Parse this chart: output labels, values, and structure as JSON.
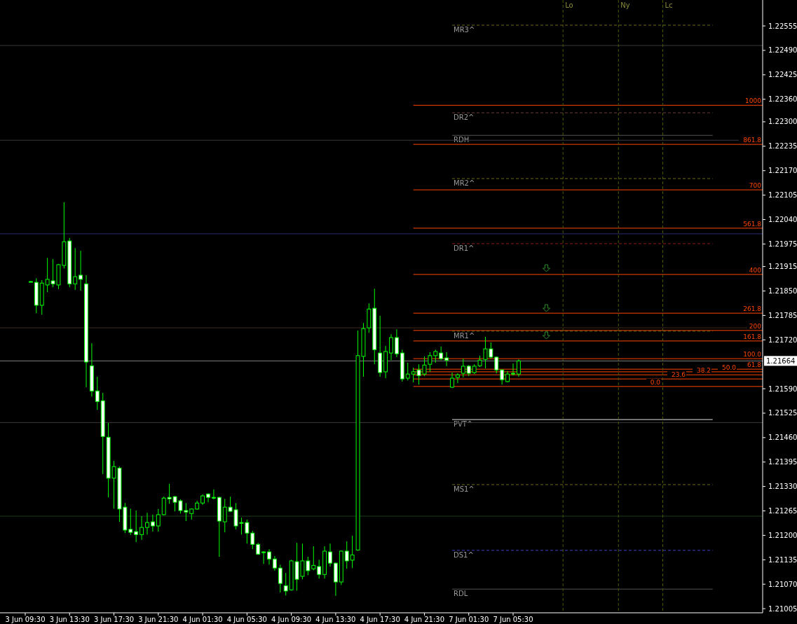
{
  "chart_data": {
    "type": "candlestick",
    "color": "#00ff00",
    "annotations": [
      {
        "text": "1000",
        "y": 1.22344
      },
      {
        "text": "861.8",
        "y": 1.2224
      },
      {
        "text": "700",
        "y": 1.22119
      },
      {
        "text": "561.8",
        "y": 1.22017
      },
      {
        "text": "400",
        "y": 1.21894
      },
      {
        "text": "261.8",
        "y": 1.21791
      },
      {
        "text": "200",
        "y": 1.21745
      },
      {
        "text": "161.8",
        "y": 1.21717
      },
      {
        "text": "100.0",
        "y": 1.2167
      },
      {
        "text": "61.8",
        "y": 1.21642
      },
      {
        "text": "50.0",
        "y": 1.21635
      },
      {
        "text": "38.2",
        "y": 1.21627
      },
      {
        "text": "23.6",
        "y": 1.21616
      },
      {
        "text": "0.0",
        "y": 1.21596
      },
      "Lo",
      "Ny",
      "Lc"
    ],
    "categories": [
      "3 Jun 09:30",
      null,
      null,
      null,
      null,
      null,
      null,
      null,
      "3 Jun 13:30",
      null,
      null,
      null,
      null,
      null,
      null,
      null,
      "3 Jun 17:30",
      null,
      null,
      null,
      null,
      null,
      null,
      null,
      "3 Jun 21:30",
      null,
      null,
      null,
      null,
      null,
      null,
      null,
      "4 Jun 01:30",
      null,
      null,
      null,
      null,
      null,
      null,
      null,
      "4 Jun 05:30",
      null,
      null,
      null,
      null,
      null,
      null,
      null,
      "4 Jun 09:30",
      null,
      null,
      null,
      null,
      null,
      null,
      null,
      "4 Jun 13:30",
      null,
      null,
      null,
      null,
      null,
      null,
      null,
      "4 Jun 17:30",
      null,
      null,
      null,
      null,
      null,
      null,
      null,
      "4 Jun 21:30",
      null,
      null,
      null,
      null,
      null,
      null,
      null,
      "7 Jun 01:30",
      null,
      null,
      null,
      null,
      null,
      null,
      null,
      "7 Jun 05:30",
      null,
      null,
      null,
      null,
      null,
      null,
      null,
      null,
      null,
      null,
      null,
      null,
      null,
      null,
      null,
      null,
      null,
      null,
      null,
      null,
      null,
      null,
      null,
      null,
      null,
      null,
      null,
      null,
      null,
      null,
      null,
      null,
      null,
      null,
      null,
      null,
      null,
      null,
      null,
      null,
      null,
      null,
      null,
      null
    ],
    "ohlc": [
      null,
      [
        1.21875,
        1.21877,
        1.21873,
        1.21875
      ],
      [
        1.21873,
        1.21884,
        1.21791,
        1.21812
      ],
      [
        1.21812,
        1.21879,
        1.21787,
        1.21871
      ],
      [
        1.21866,
        1.21938,
        1.21847,
        1.21881
      ],
      [
        1.21877,
        1.21935,
        1.2186,
        1.21869
      ],
      [
        1.21866,
        1.21922,
        1.21855,
        1.2192
      ],
      [
        1.21918,
        1.22086,
        1.2191,
        1.21981
      ],
      [
        1.21983,
        1.21991,
        1.2186,
        1.21869
      ],
      [
        1.21869,
        1.21964,
        1.21853,
        1.21888
      ],
      [
        1.21892,
        1.21957,
        1.21851,
        1.21881
      ],
      [
        1.21869,
        1.21892,
        1.21594,
        1.21661
      ],
      [
        1.21651,
        1.21711,
        1.21569,
        1.21584
      ],
      [
        1.21584,
        1.21622,
        1.21534,
        1.21556
      ],
      [
        1.21558,
        1.21579,
        1.21363,
        1.21463
      ],
      [
        1.21461,
        1.21499,
        1.21301,
        1.21352
      ],
      [
        1.21352,
        1.21398,
        1.21271,
        1.21383
      ],
      [
        1.21379,
        1.21383,
        1.21236,
        1.2127
      ],
      [
        1.21275,
        1.21286,
        1.21206,
        1.21214
      ],
      [
        1.21216,
        1.21271,
        1.21201,
        1.21208
      ],
      [
        1.2121,
        1.21266,
        1.21182,
        1.21202
      ],
      [
        1.21202,
        1.21251,
        1.21188,
        1.21221
      ],
      [
        1.21221,
        1.2126,
        1.21202,
        1.21234
      ],
      [
        1.21236,
        1.21255,
        1.2121,
        1.21225
      ],
      [
        1.21225,
        1.2127,
        1.2121,
        1.21255
      ],
      [
        1.21255,
        1.21303,
        1.21253,
        1.21299
      ],
      [
        1.21301,
        1.21337,
        1.21284,
        1.21297
      ],
      [
        1.21303,
        1.21305,
        1.21264,
        1.21288
      ],
      [
        1.21292,
        1.21296,
        1.21258,
        1.21266
      ],
      [
        1.21266,
        1.21286,
        1.21238,
        1.21262
      ],
      [
        1.21258,
        1.21272,
        1.21242,
        1.2127
      ],
      [
        1.2127,
        1.21292,
        1.21268,
        1.21286
      ],
      [
        1.21286,
        1.21309,
        1.21281,
        1.21305
      ],
      [
        1.2131,
        1.21312,
        1.21288,
        1.21301
      ],
      [
        1.21301,
        1.21322,
        1.21296,
        1.21299
      ],
      [
        1.21301,
        1.21303,
        1.21143,
        1.21238
      ],
      [
        1.21236,
        1.21297,
        1.21208,
        1.21275
      ],
      [
        1.21275,
        1.21303,
        1.21262,
        1.21264
      ],
      [
        1.21268,
        1.21286,
        1.21216,
        1.21225
      ],
      [
        1.21234,
        1.21247,
        1.21202,
        1.21232
      ],
      [
        1.21234,
        1.21242,
        1.21178,
        1.21206
      ],
      [
        1.21206,
        1.21212,
        1.21163,
        1.21176
      ],
      [
        1.21176,
        1.2118,
        1.21148,
        1.2115
      ],
      [
        1.21156,
        1.21158,
        1.21124,
        1.21154
      ],
      [
        1.21156,
        1.21163,
        1.21122,
        1.21137
      ],
      [
        1.21137,
        1.21145,
        1.21106,
        1.21113
      ],
      [
        1.21113,
        1.21122,
        1.21048,
        1.21072
      ],
      [
        1.21066,
        1.211,
        1.2104,
        1.21052
      ],
      [
        1.21055,
        1.21135,
        1.21053,
        1.21132
      ],
      [
        1.2113,
        1.2118,
        1.21053,
        1.21083
      ],
      [
        1.21091,
        1.21178,
        1.21083,
        1.21132
      ],
      [
        1.21132,
        1.21143,
        1.21094,
        1.21106
      ],
      [
        1.21111,
        1.21171,
        1.21107,
        1.2112
      ],
      [
        1.21117,
        1.21135,
        1.21085,
        1.21096
      ],
      [
        1.21096,
        1.21171,
        1.21085,
        1.21158
      ],
      [
        1.21156,
        1.21178,
        1.21117,
        1.21126
      ],
      [
        1.21126,
        1.21128,
        1.21039,
        1.21076
      ],
      [
        1.21076,
        1.2116,
        1.21068,
        1.21158
      ],
      [
        1.21158,
        1.21184,
        1.21111,
        1.21132
      ],
      [
        1.21134,
        1.21199,
        1.21113,
        1.21148
      ],
      [
        1.21161,
        1.21745,
        1.21159,
        1.21678
      ],
      [
        1.21676,
        1.21765,
        1.21622,
        1.2175
      ],
      [
        1.21752,
        1.21817,
        1.21739,
        1.21802
      ],
      [
        1.21804,
        1.21856,
        1.21655,
        1.21694
      ],
      [
        1.21685,
        1.21784,
        1.21622,
        1.21633
      ],
      [
        1.21635,
        1.21704,
        1.21618,
        1.21689
      ],
      [
        1.21685,
        1.21735,
        1.21666,
        1.21726
      ],
      [
        1.21726,
        1.21748,
        1.21674,
        1.21683
      ],
      [
        1.21685,
        1.21694,
        1.21609,
        1.21616
      ],
      [
        1.21618,
        1.21659,
        1.21612,
        1.21629
      ],
      [
        1.21629,
        1.21646,
        1.21607,
        1.21635
      ],
      [
        1.2164,
        1.21655,
        1.21601,
        1.21625
      ],
      [
        1.21629,
        1.21676,
        1.21624,
        1.21653
      ],
      [
        1.21655,
        1.21687,
        1.21635,
        1.21678
      ],
      [
        1.21678,
        1.21694,
        1.21659,
        1.21689
      ],
      [
        1.21685,
        1.21702,
        1.21666,
        1.2167
      ],
      [
        1.21672,
        1.21687,
        1.2165,
        1.21666
      ],
      [
        1.21594,
        1.21633,
        1.21592,
        1.21618
      ],
      [
        1.2162,
        1.21631,
        1.21605,
        1.21627
      ],
      [
        1.21631,
        1.2167,
        1.2162,
        1.2165
      ],
      [
        1.2165,
        1.21653,
        1.21624,
        1.21631
      ],
      [
        1.21633,
        1.21655,
        1.21629,
        1.2165
      ],
      [
        1.21651,
        1.21678,
        1.21648,
        1.21666
      ],
      [
        1.21668,
        1.21728,
        1.21644,
        1.21696
      ],
      [
        1.21696,
        1.21713,
        1.2167,
        1.21674
      ],
      [
        1.21674,
        1.21676,
        1.21631,
        1.2164
      ],
      [
        1.2164,
        1.21642,
        1.21601,
        1.21614
      ],
      [
        1.21609,
        1.21637,
        1.21607,
        1.21629
      ],
      [
        1.21631,
        1.21657,
        1.21625,
        1.21629
      ],
      [
        1.21629,
        1.21668,
        1.21622,
        1.21664
      ],
      null,
      null,
      null,
      null,
      null,
      null,
      null,
      null,
      null,
      null,
      null,
      null,
      null,
      null,
      null,
      null,
      null,
      null,
      null,
      null,
      null,
      null,
      null,
      null,
      null,
      null,
      null,
      null,
      null,
      null,
      null,
      null,
      null,
      null,
      null,
      null,
      null,
      null,
      null,
      null,
      null,
      null,
      null
    ],
    "ylim": [
      1.20994,
      1.22624
    ],
    "yticks": [
      {
        "value": 1.22555,
        "label": "1.22555"
      },
      {
        "value": 1.2249,
        "label": "1.22490"
      },
      {
        "value": 1.22425,
        "label": "1.22425"
      },
      {
        "value": 1.2236,
        "label": "1.22360"
      },
      {
        "value": 1.223,
        "label": "1.22300"
      },
      {
        "value": 1.22235,
        "label": "1.22235"
      },
      {
        "value": 1.2217,
        "label": "1.22170"
      },
      {
        "value": 1.22105,
        "label": "1.22105"
      },
      {
        "value": 1.2204,
        "label": "1.22040"
      },
      {
        "value": 1.21975,
        "label": "1.21975"
      },
      {
        "value": 1.21915,
        "label": "1.21915"
      },
      {
        "value": 1.2185,
        "label": "1.21850"
      },
      {
        "value": 1.21785,
        "label": "1.21785"
      },
      {
        "value": 1.2172,
        "label": "1.21720"
      },
      {
        "value": 1.2159,
        "label": "1.21590"
      },
      {
        "value": 1.21525,
        "label": "1.21525"
      },
      {
        "value": 1.2146,
        "label": "1.21460"
      },
      {
        "value": 1.21395,
        "label": "1.21395"
      },
      {
        "value": 1.2133,
        "label": "1.21330"
      },
      {
        "value": 1.21265,
        "label": "1.21265"
      },
      {
        "value": 1.212,
        "label": "1.21200"
      },
      {
        "value": 1.21135,
        "label": "1.21135"
      },
      {
        "value": 1.2107,
        "label": "1.21070"
      },
      {
        "value": 1.21005,
        "label": "1.21005"
      }
    ],
    "ref_lines": [
      {
        "axis": "y",
        "value": 1.22344,
        "color": "#ff4500",
        "line_style": "solid"
      },
      {
        "axis": "y",
        "value": 1.2224,
        "color": "#ff4500",
        "line_style": "solid"
      },
      {
        "axis": "y",
        "value": 1.22119,
        "color": "#ff4500",
        "line_style": "solid"
      },
      {
        "axis": "y",
        "value": 1.22017,
        "color": "#ff4500",
        "line_style": "solid"
      },
      {
        "axis": "y",
        "value": 1.21894,
        "color": "#ff4500",
        "line_style": "solid"
      },
      {
        "axis": "y",
        "value": 1.21791,
        "color": "#ff4500",
        "line_style": "solid"
      },
      {
        "axis": "y",
        "value": 1.21745,
        "color": "#ff4500",
        "line_style": "solid"
      },
      {
        "axis": "y",
        "value": 1.21717,
        "color": "#ff4500",
        "line_style": "solid"
      },
      {
        "axis": "y",
        "value": 1.2167,
        "color": "#ff4500",
        "line_style": "solid"
      },
      {
        "axis": "y",
        "value": 1.21642,
        "color": "#ff4500",
        "line_style": "solid"
      },
      {
        "axis": "y",
        "value": 1.21635,
        "color": "#ff4500",
        "line_style": "solid"
      },
      {
        "axis": "y",
        "value": 1.21627,
        "color": "#ff4500",
        "line_style": "solid"
      },
      {
        "axis": "y",
        "value": 1.21616,
        "color": "#ff4500",
        "line_style": "solid"
      },
      {
        "axis": "y",
        "value": 1.21596,
        "color": "#ff4500",
        "line_style": "solid"
      },
      {
        "axis": "y",
        "value": 1.22557,
        "label": "MR3^",
        "color": "#6b6b1a",
        "line_style": "dashed"
      },
      {
        "axis": "y",
        "value": 1.22324,
        "label": "DR2^",
        "color": "#6b3a3a",
        "line_style": "dashed"
      },
      {
        "axis": "y",
        "value": 1.22264,
        "label": "RDH",
        "color": "#555555",
        "line_style": "solid"
      },
      {
        "axis": "y",
        "value": 1.22149,
        "label": "MR2^",
        "color": "#6b6b1a",
        "line_style": "dashed"
      },
      {
        "axis": "y",
        "value": 1.21976,
        "label": "DR1^",
        "color": "#8b1a1a",
        "line_style": "dashed"
      },
      {
        "axis": "y",
        "value": 1.21743,
        "label": "MR1^",
        "color": "#6b6b1a",
        "line_style": "dashed"
      },
      {
        "axis": "y",
        "value": 1.21508,
        "label": "PVT^",
        "color": "#e0e0e0",
        "line_style": "solid"
      },
      {
        "axis": "y",
        "value": 1.21335,
        "label": "MS1^",
        "color": "#6b6b1a",
        "line_style": "dashed"
      },
      {
        "axis": "y",
        "value": 1.2116,
        "label": "DS1^",
        "color": "#4040c0",
        "line_style": "dashed"
      },
      {
        "axis": "y",
        "value": 1.21057,
        "label": "RDL",
        "color": "#555555",
        "line_style": "solid"
      },
      {
        "axis": "y",
        "value": 1.22503,
        "color": "#3c3c3c",
        "line_style": "solid"
      },
      {
        "axis": "y",
        "value": 1.22251,
        "color": "#3c3c3c",
        "line_style": "solid"
      },
      {
        "axis": "y",
        "value": 1.22002,
        "color": "#2a2a6e",
        "line_style": "solid"
      },
      {
        "axis": "y",
        "value": 1.21752,
        "color": "#3c2a1e",
        "line_style": "solid"
      },
      {
        "axis": "y",
        "value": 1.215,
        "color": "#3c3c3c",
        "line_style": "solid"
      },
      {
        "axis": "y",
        "value": 1.21251,
        "color": "#1e3c1e",
        "line_style": "solid"
      },
      {
        "axis": "y",
        "value": 1.21664,
        "label": "1.21664",
        "color": "#808080",
        "line_style": "solid"
      }
    ]
  }
}
